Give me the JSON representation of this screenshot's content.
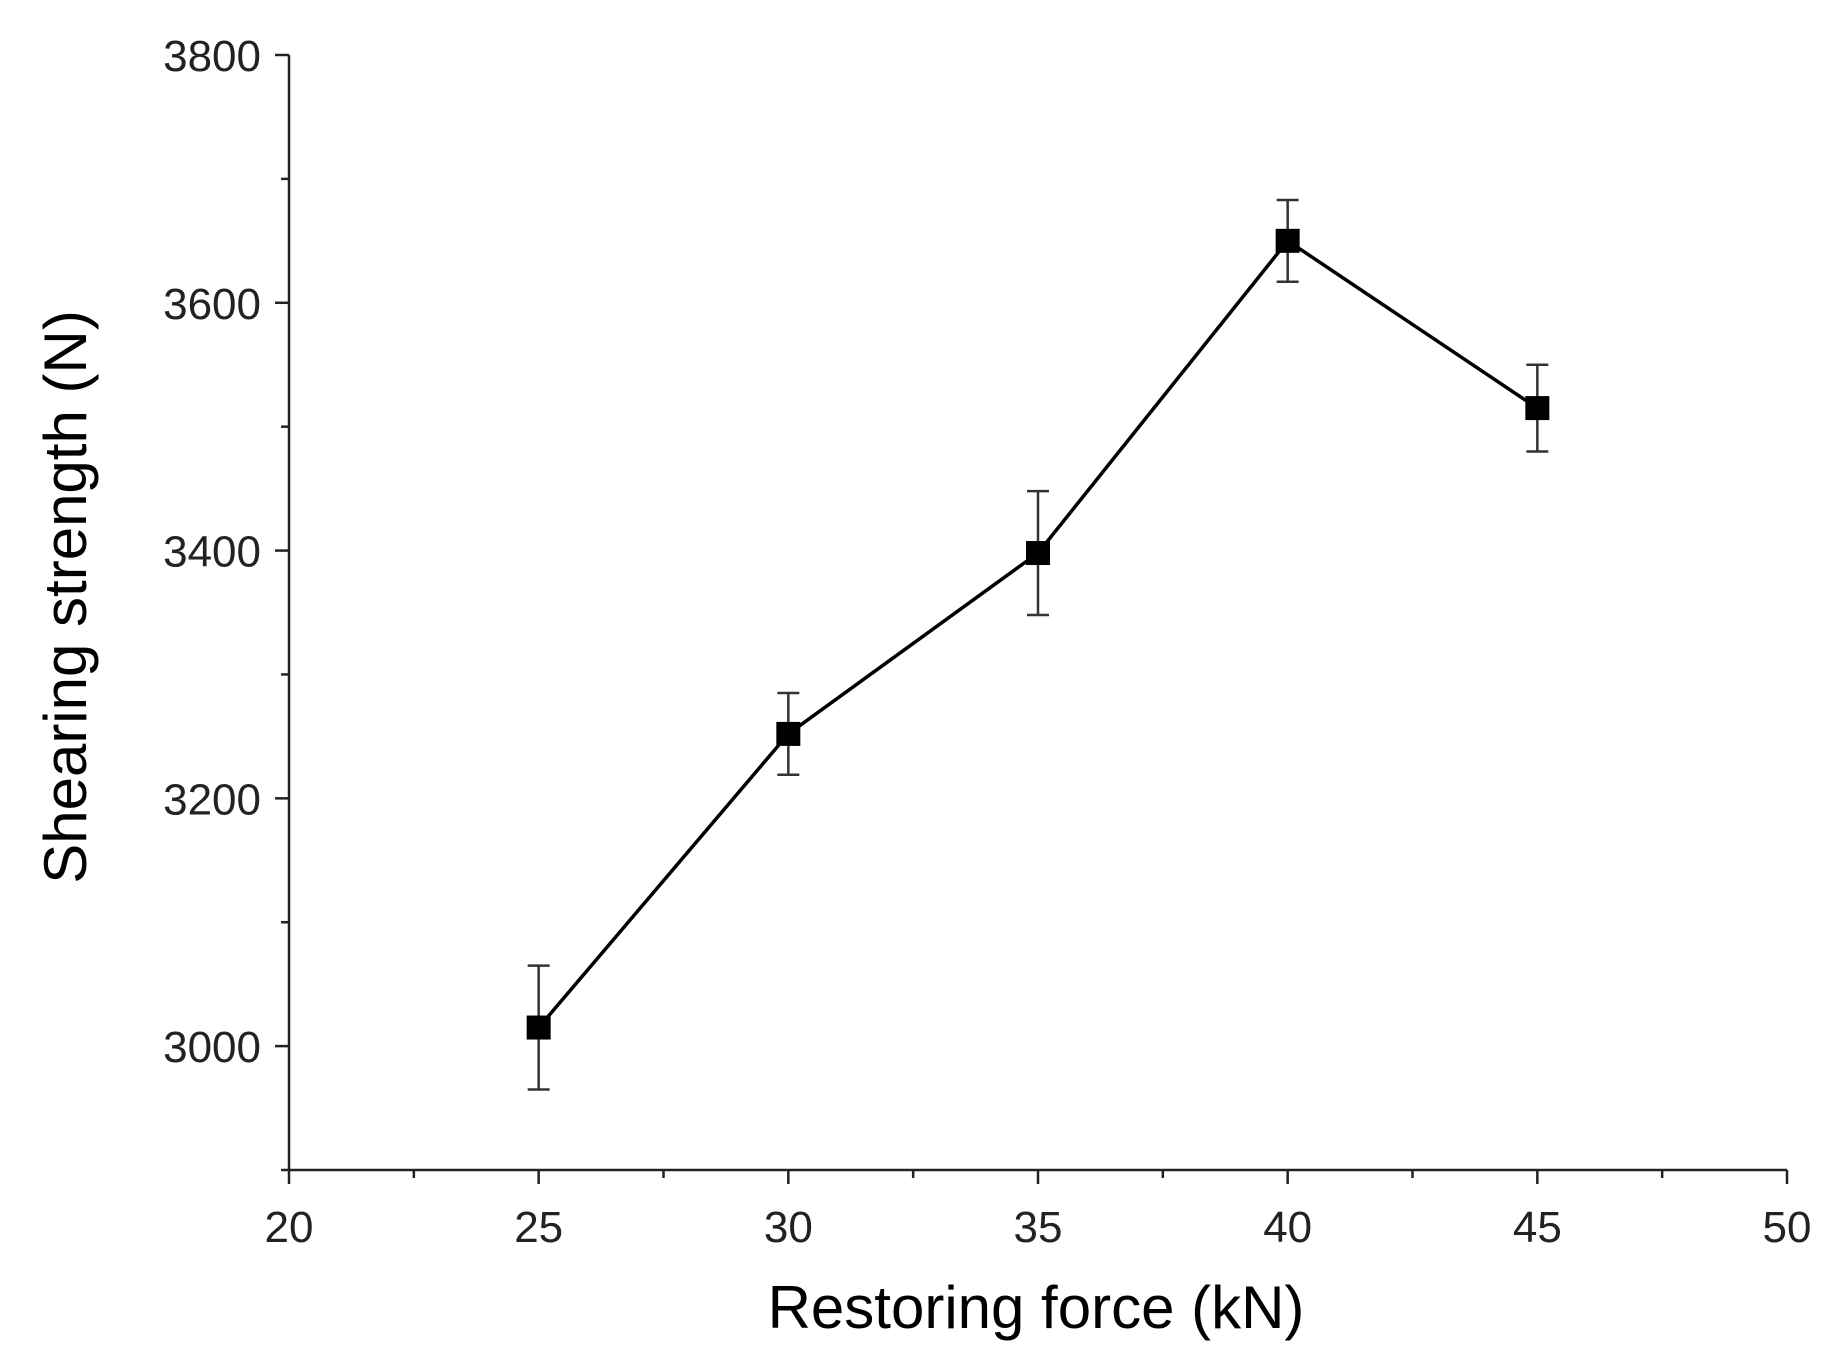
{
  "chart_data": {
    "type": "line",
    "title": "",
    "xlabel": "Restoring force (kN)",
    "ylabel": "Shearing strength (N)",
    "xlim": [
      20,
      50
    ],
    "ylim": [
      2900,
      3800
    ],
    "x_ticks": [
      "20",
      "25",
      "30",
      "35",
      "40",
      "45",
      "50"
    ],
    "x_tick_values": [
      20,
      25,
      30,
      35,
      40,
      45,
      50
    ],
    "y_ticks": [
      "3000",
      "3200",
      "3400",
      "3600",
      "3800"
    ],
    "y_tick_values": [
      3000,
      3200,
      3400,
      3600,
      3800
    ],
    "grid": false,
    "series": [
      {
        "name": "Shearing strength",
        "marker": "square",
        "color": "#000000",
        "x": [
          25,
          30,
          35,
          40,
          45
        ],
        "values": [
          3015,
          3252,
          3398,
          3650,
          3515
        ],
        "error": [
          50,
          33,
          50,
          33,
          35
        ]
      }
    ]
  }
}
